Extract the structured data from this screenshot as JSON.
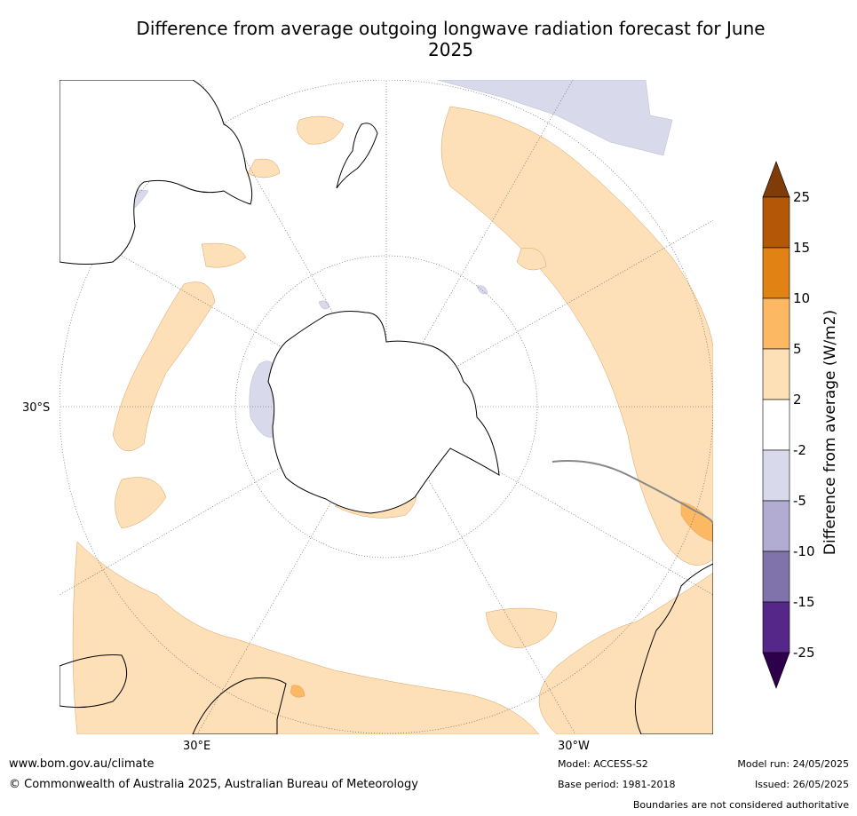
{
  "title": "Difference from average outgoing longwave radiation forecast for June 2025",
  "map": {
    "projection": "south-polar stereographic",
    "lat_label": "30°S",
    "lon_labels": {
      "east": "30°E",
      "west": "30°W"
    },
    "colors": {
      "pale_orange": "#fde0b8",
      "mid_orange": "#fdb863",
      "lavender": "#d8daeb",
      "dark_orange": "#e08214",
      "coast": "#000000",
      "border": "#888888"
    }
  },
  "legend": {
    "title": "Difference from average (W/m2)",
    "levels": [
      "25",
      "15",
      "10",
      "5",
      "2",
      "-2",
      "-5",
      "-10",
      "-15",
      "-25"
    ],
    "colors": [
      "#7f3b08",
      "#b35806",
      "#e08214",
      "#fdb863",
      "#fee0b6",
      "#ffffff",
      "#d8daeb",
      "#b2abd2",
      "#8073ac",
      "#542788",
      "#2d004b"
    ]
  },
  "footer": {
    "website": "www.bom.gov.au/climate",
    "copyright": "© Commonwealth of Australia 2025, Australian Bureau of Meteorology",
    "model": "Model: ACCESS-S2",
    "base_period": "Base period: 1981-2018",
    "model_run": "Model run: 24/05/2025",
    "issued": "Issued: 26/05/2025",
    "disclaimer": "Boundaries are not considered authoritative"
  }
}
